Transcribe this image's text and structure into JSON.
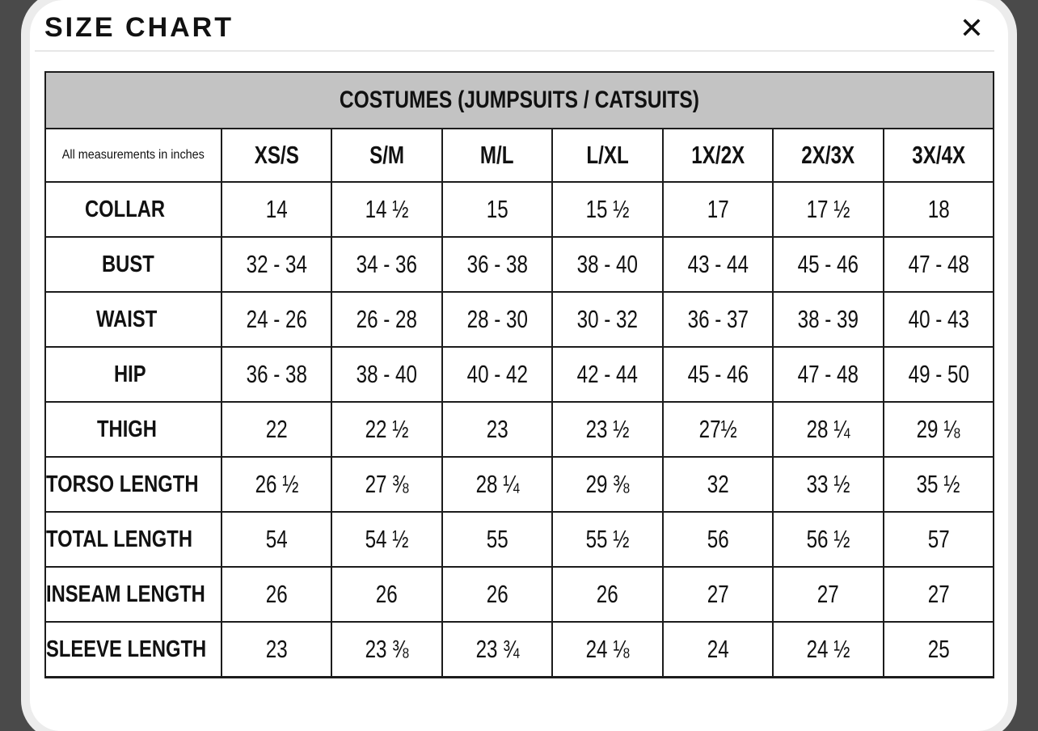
{
  "modal": {
    "title": "SIZE CHART",
    "close_icon": "✕"
  },
  "table": {
    "caption": "COSTUMES (JUMPSUITS / CATSUITS)",
    "note": "All measurements in inches",
    "columns": [
      "XS/S",
      "S/M",
      "M/L",
      "L/XL",
      "1X/2X",
      "2X/3X",
      "3X/4X"
    ],
    "rows": [
      {
        "label": "COLLAR",
        "values": [
          "14",
          "14 ½",
          "15",
          "15 ½",
          "17",
          "17 ½",
          "18"
        ]
      },
      {
        "label": "BUST",
        "values": [
          "32 - 34",
          "34 - 36",
          "36 - 38",
          "38 - 40",
          "43 - 44",
          "45 - 46",
          "47 - 48"
        ]
      },
      {
        "label": "WAIST",
        "values": [
          "24 - 26",
          "26 - 28",
          "28 - 30",
          "30 - 32",
          "36 - 37",
          "38 - 39",
          "40 - 43"
        ]
      },
      {
        "label": "HIP",
        "values": [
          "36 - 38",
          "38 - 40",
          "40 - 42",
          "42 - 44",
          "45 - 46",
          "47 - 48",
          "49 - 50"
        ]
      },
      {
        "label": "THIGH",
        "values": [
          "22",
          "22 ½",
          "23",
          "23 ½",
          "27½",
          "28 ¼",
          "29 ⅛"
        ]
      },
      {
        "label": "TORSO LENGTH",
        "values": [
          "26 ½",
          "27 ⅜",
          "28 ¼",
          "29 ⅜",
          "32",
          "33 ½",
          "35 ½"
        ]
      },
      {
        "label": "TOTAL LENGTH",
        "values": [
          "54",
          "54 ½",
          "55",
          "55 ½",
          "56",
          "56 ½",
          "57"
        ]
      },
      {
        "label": "INSEAM LENGTH",
        "values": [
          "26",
          "26",
          "26",
          "26",
          "27",
          "27",
          "27"
        ]
      },
      {
        "label": "SLEEVE LENGTH",
        "values": [
          "23",
          "23 ⅜",
          "23 ¾",
          "24 ⅛",
          "24",
          "24 ½",
          "25"
        ]
      }
    ]
  },
  "colors": {
    "backdrop": "#4a4a4a",
    "frame_ring": "#ececec",
    "card": "#ffffff",
    "caption_band": "#c3c3c3",
    "border": "#1c1c1c",
    "divider": "#e7e7e7",
    "text": "#111111"
  }
}
